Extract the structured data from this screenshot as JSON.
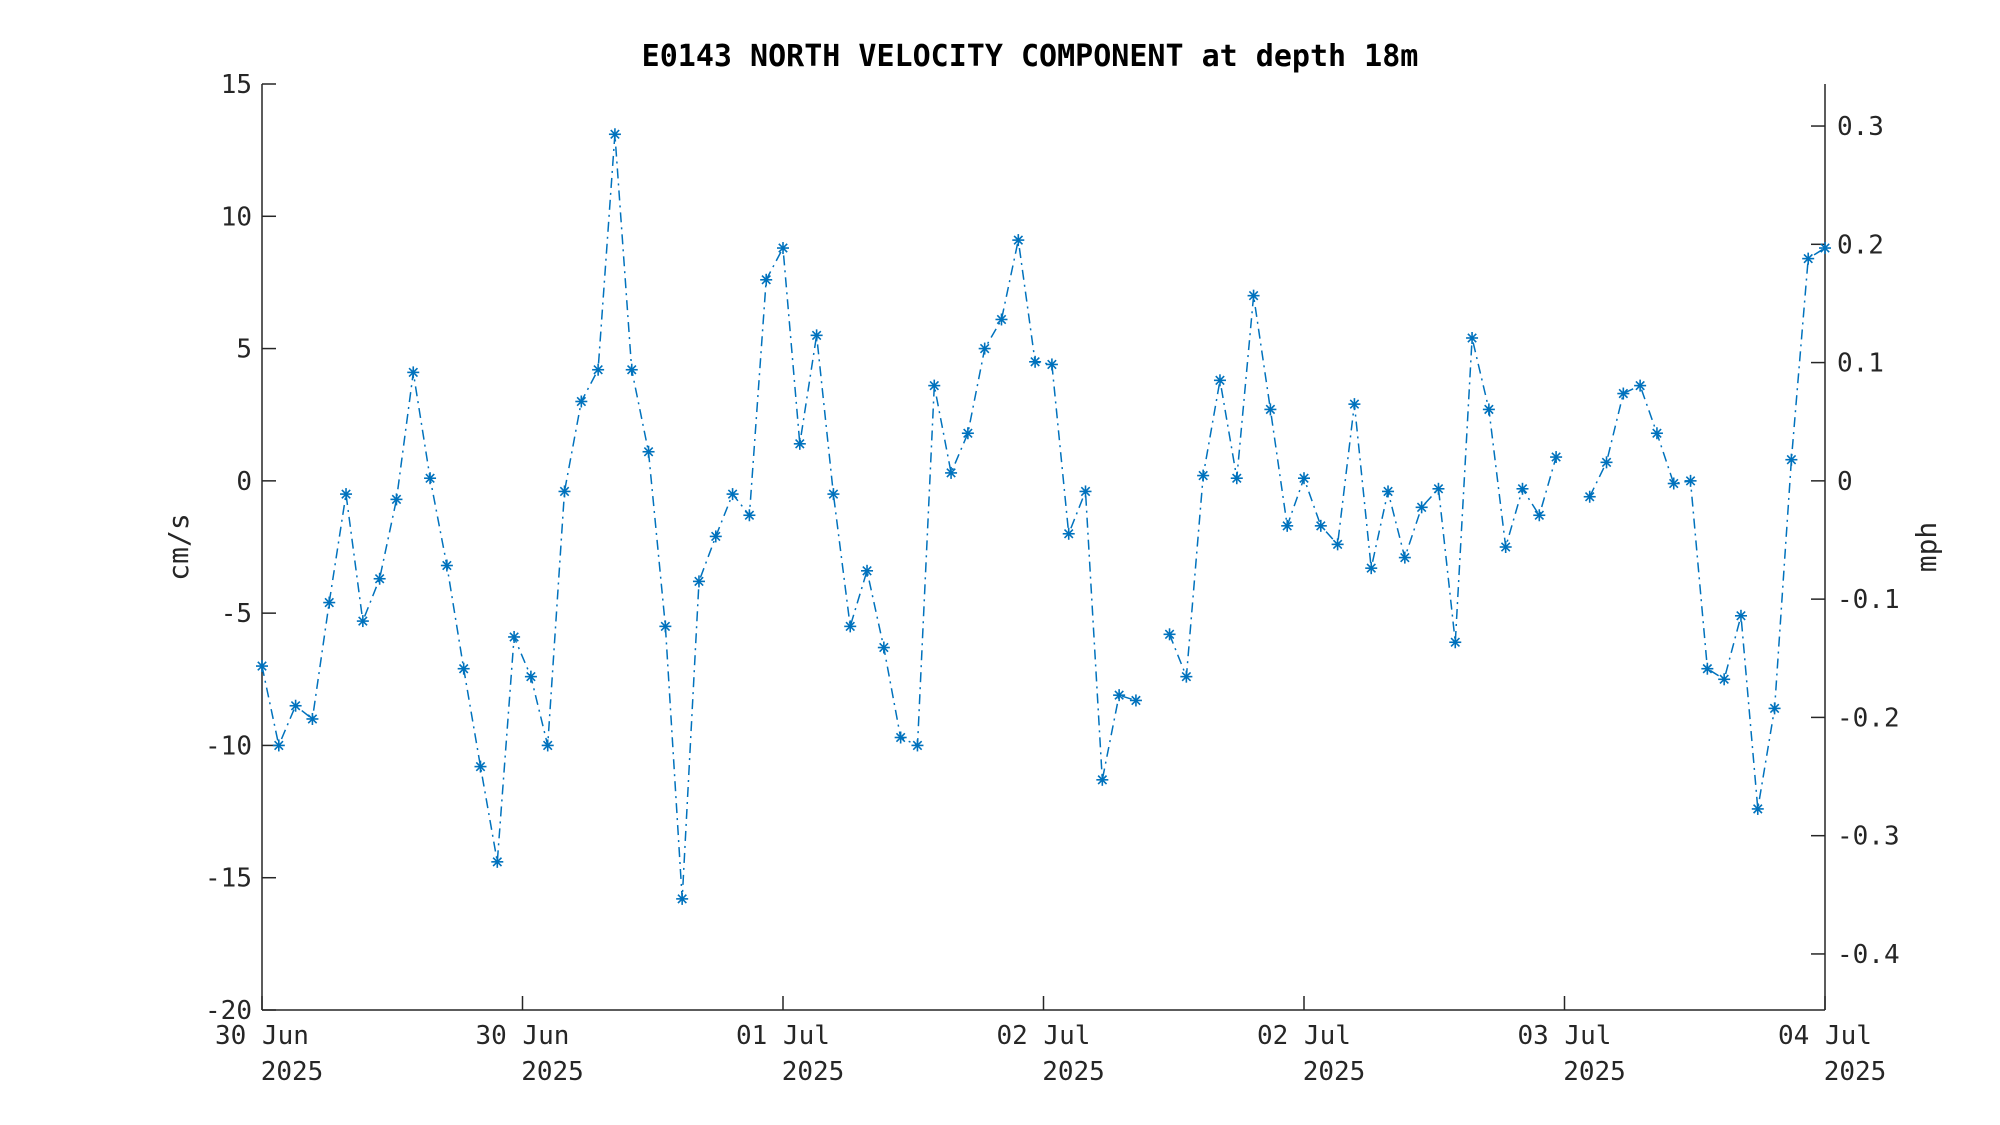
{
  "chart_data": {
    "type": "line",
    "title": "E0143 NORTH VELOCITY COMPONENT at depth 18m",
    "ylabel": "cm/s",
    "y2label": "mph",
    "ylim": [
      -20,
      15
    ],
    "yticks": [
      15,
      10,
      5,
      0,
      -5,
      -10,
      -15,
      -20
    ],
    "y2ticks": [
      0.3,
      0.2,
      0.1,
      0,
      -0.1,
      -0.2,
      -0.3,
      -0.4
    ],
    "y2tick_labels": [
      "0.3",
      "0.2",
      "0.1",
      "0",
      "-0.1",
      "-0.2",
      "-0.3",
      "-0.4"
    ],
    "xticks": [
      {
        "line1": "30 Jun",
        "line2": "2025"
      },
      {
        "line1": "30 Jun",
        "line2": "2025"
      },
      {
        "line1": "01 Jul",
        "line2": "2025"
      },
      {
        "line1": "02 Jul",
        "line2": "2025"
      },
      {
        "line1": "02 Jul",
        "line2": "2025"
      },
      {
        "line1": "03 Jul",
        "line2": "2025"
      },
      {
        "line1": "04 Jul",
        "line2": "2025"
      }
    ],
    "color": "#0072BD",
    "marker": "asterisk",
    "line_style": "dash-dot",
    "grid": false,
    "values": [
      -7.0,
      -10.0,
      -8.5,
      -9.0,
      -4.6,
      -0.5,
      -5.3,
      -3.7,
      -0.7,
      4.1,
      0.1,
      -3.2,
      -7.1,
      -10.8,
      -14.4,
      -5.9,
      -7.4,
      -10.0,
      -0.4,
      3.0,
      4.2,
      13.1,
      4.2,
      1.1,
      -5.5,
      -15.8,
      -3.8,
      -2.1,
      -0.5,
      -1.3,
      7.6,
      8.8,
      1.4,
      5.5,
      -0.5,
      -5.5,
      -3.4,
      -6.3,
      -9.7,
      -10.0,
      3.6,
      0.3,
      1.8,
      5.0,
      6.1,
      9.1,
      4.5,
      4.4,
      -2.0,
      -0.4,
      -11.3,
      -8.1,
      -8.3,
      null,
      -5.8,
      -7.4,
      0.2,
      3.8,
      0.1,
      7.0,
      2.7,
      -1.7,
      0.1,
      -1.7,
      -2.4,
      2.9,
      -3.3,
      -0.4,
      -2.9,
      -1.0,
      -0.3,
      -6.1,
      5.4,
      2.7,
      -2.5,
      -0.3,
      -1.3,
      0.9,
      null,
      -0.6,
      0.7,
      3.3,
      3.6,
      1.8,
      -0.1,
      0.0,
      -7.1,
      -7.5,
      -5.1,
      -12.4,
      -8.6,
      0.8,
      8.4,
      8.8
    ]
  }
}
